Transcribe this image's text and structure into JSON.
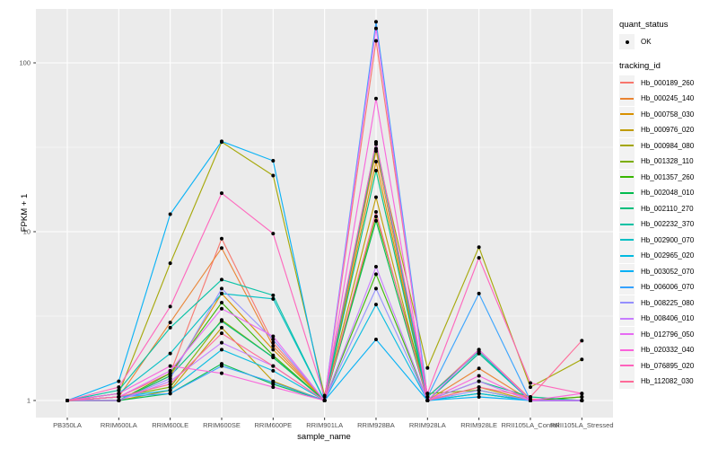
{
  "colors": {
    "panel_bg": "#EBEBEB",
    "grid": "#FFFFFF",
    "axis_text": "#4D4D4D",
    "tick_mark": "#333333",
    "point": "#000000",
    "legend_key_bg": "#F2F2F2"
  },
  "legend": {
    "quant_status_title": "quant_status",
    "quant_status_items": [
      {
        "label": "OK",
        "marker": "black-point"
      }
    ],
    "tracking_id_title": "tracking_id"
  },
  "chart_data": {
    "type": "line",
    "title": "",
    "xlabel": "sample_name",
    "ylabel": "FPKM + 1",
    "y_scale": "log10",
    "y_major_ticks": [
      1,
      10,
      100
    ],
    "y_minor_gridlines": [
      3.1623,
      31.623
    ],
    "ylim": [
      0.8,
      210
    ],
    "grid": "white major+minor on gray panel",
    "legend_position": "right",
    "point_marker": "black dot on every value",
    "x_categories": [
      "PB350LA",
      "RRIM600LA",
      "RRIM600LE",
      "RRIM600SE",
      "RRIM600PE",
      "RRIM901LA",
      "RRIM928BA",
      "RRIM928LA",
      "RRIM928LE",
      "RRII105LA_Control",
      "RRII105LA_Stressed"
    ],
    "series": [
      {
        "name": "Hb_000189_260",
        "color": "#F8766D",
        "values": [
          1.0,
          1.05,
          1.45,
          9.1,
          2.2,
          1.0,
          135,
          1.05,
          2.0,
          1.02,
          1.0
        ]
      },
      {
        "name": "Hb_000245_140",
        "color": "#EA8331",
        "values": [
          1.0,
          1.05,
          2.9,
          8.0,
          2.1,
          1.0,
          30,
          1.0,
          1.55,
          1.0,
          1.05
        ]
      },
      {
        "name": "Hb_000758_030",
        "color": "#D89000",
        "values": [
          1.0,
          1.0,
          1.4,
          4.3,
          2.0,
          1.0,
          26,
          1.0,
          1.9,
          1.0,
          1.0
        ]
      },
      {
        "name": "Hb_000976_020",
        "color": "#C09B00",
        "values": [
          1.0,
          1.0,
          1.15,
          2.7,
          1.3,
          1.0,
          16,
          1.0,
          1.2,
          1.0,
          1.0
        ]
      },
      {
        "name": "Hb_000984_080",
        "color": "#A3A500",
        "values": [
          1.0,
          1.1,
          6.5,
          34,
          21.5,
          1.07,
          31,
          1.56,
          8.1,
          1.2,
          1.75
        ]
      },
      {
        "name": "Hb_001328_110",
        "color": "#7CAE00",
        "values": [
          1.0,
          1.05,
          1.2,
          3.0,
          1.8,
          1.0,
          12.3,
          1.1,
          1.15,
          1.0,
          1.0
        ]
      },
      {
        "name": "Hb_001357_260",
        "color": "#39B600",
        "values": [
          1.0,
          1.0,
          1.45,
          3.8,
          1.85,
          1.0,
          5.6,
          1.0,
          1.9,
          1.0,
          1.05
        ]
      },
      {
        "name": "Hb_002048_010",
        "color": "#00BB4E",
        "values": [
          1.0,
          1.0,
          1.1,
          1.65,
          1.25,
          1.0,
          11.6,
          1.0,
          1.1,
          1.0,
          1.0
        ]
      },
      {
        "name": "Hb_002110_270",
        "color": "#00BF7D",
        "values": [
          1.0,
          1.0,
          1.4,
          2.95,
          1.8,
          1.0,
          23,
          1.0,
          1.3,
          1.05,
          1.0
        ]
      },
      {
        "name": "Hb_002232_370",
        "color": "#00C1A3",
        "values": [
          1.0,
          1.15,
          2.7,
          5.2,
          4.2,
          1.0,
          33,
          1.05,
          1.95,
          1.0,
          1.0
        ]
      },
      {
        "name": "Hb_002900_070",
        "color": "#00BFC4",
        "values": [
          1.0,
          1.1,
          1.9,
          4.3,
          4.0,
          1.0,
          34,
          1.0,
          1.9,
          1.0,
          1.0
        ]
      },
      {
        "name": "Hb_002965_020",
        "color": "#00BAE0",
        "values": [
          1.0,
          1.05,
          1.15,
          2.0,
          1.5,
          1.0,
          3.7,
          1.0,
          1.1,
          1.0,
          1.0
        ]
      },
      {
        "name": "Hb_003052_070",
        "color": "#00B0F6",
        "values": [
          1.0,
          1.3,
          12.7,
          34.3,
          26.3,
          1.0,
          2.3,
          1.0,
          1.05,
          1.0,
          1.0
        ]
      },
      {
        "name": "Hb_006006_070",
        "color": "#35A2FF",
        "values": [
          1.0,
          1.05,
          1.1,
          1.6,
          1.28,
          1.0,
          175,
          1.05,
          4.3,
          1.0,
          1.0
        ]
      },
      {
        "name": "Hb_008225_080",
        "color": "#9590FF",
        "values": [
          1.0,
          1.0,
          1.35,
          4.6,
          2.3,
          1.0,
          4.6,
          1.0,
          1.15,
          1.0,
          1.0
        ]
      },
      {
        "name": "Hb_008406_010",
        "color": "#C77CFF",
        "values": [
          1.0,
          1.0,
          1.3,
          2.2,
          1.6,
          1.0,
          6.2,
          1.0,
          1.3,
          1.0,
          1.0
        ]
      },
      {
        "name": "Hb_012796_050",
        "color": "#E76BF3",
        "values": [
          1.0,
          1.05,
          1.5,
          3.5,
          2.4,
          1.0,
          160,
          1.0,
          2.0,
          1.0,
          1.0
        ]
      },
      {
        "name": "Hb_020332_040",
        "color": "#FA62DB",
        "values": [
          1.0,
          1.1,
          1.6,
          1.45,
          1.2,
          1.0,
          61.5,
          1.0,
          1.4,
          1.0,
          1.1
        ]
      },
      {
        "name": "Hb_076895_020",
        "color": "#FF62BC",
        "values": [
          1.0,
          1.2,
          3.6,
          16.9,
          9.75,
          1.05,
          34,
          1.1,
          7.0,
          1.27,
          1.1
        ]
      },
      {
        "name": "Hb_112082_030",
        "color": "#FF6A98",
        "values": [
          1.0,
          1.05,
          1.25,
          2.5,
          1.6,
          1.0,
          13.1,
          1.0,
          1.2,
          1.05,
          2.26
        ]
      }
    ]
  }
}
